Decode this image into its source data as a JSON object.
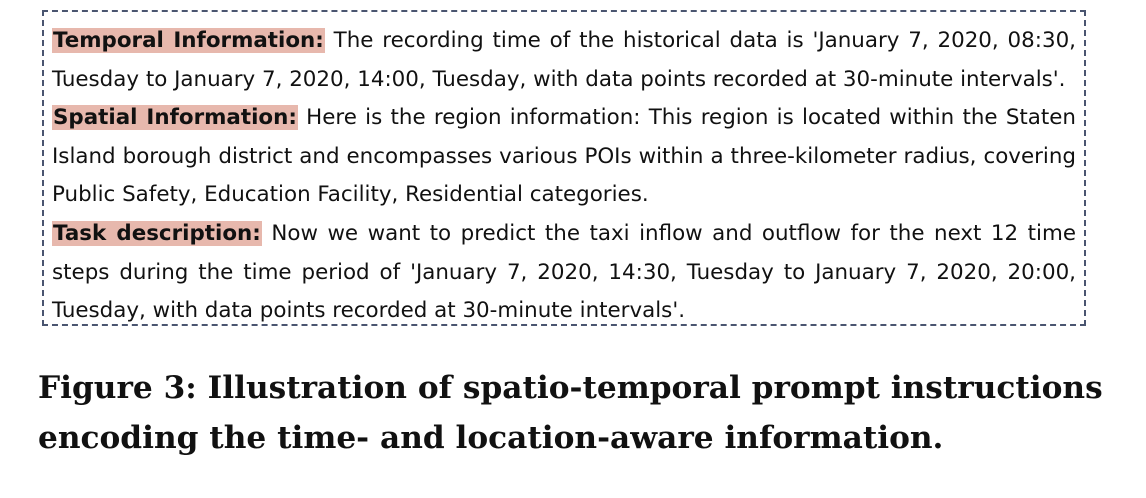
{
  "prompt": {
    "temporal": {
      "label": "Temporal Information:",
      "text": " The recording time of the historical data is 'January 7, 2020, 08:30, Tuesday to January 7, 2020, 14:00, Tuesday, with data points recorded at 30-minute intervals'."
    },
    "spatial": {
      "label": "Spatial Information:",
      "text": " Here is the region information: This region is located within the Staten Island borough district and encompasses various POIs within a three-kilometer radius, covering Public Safety, Education Facility, Residential categories."
    },
    "task": {
      "label": "Task description:",
      "text": " Now we want to predict the taxi inflow and outflow for the next 12 time steps during the time period of 'January 7, 2020, 14:30, Tuesday to January 7, 2020, 20:00, Tuesday, with data points recorded at 30-minute intervals'."
    }
  },
  "caption": "Figure 3: Illustration of spatio-temporal prompt instructions encoding the time- and location-aware information.",
  "colors": {
    "label_highlight": "#e7b8ad",
    "box_border": "#4a5570"
  }
}
